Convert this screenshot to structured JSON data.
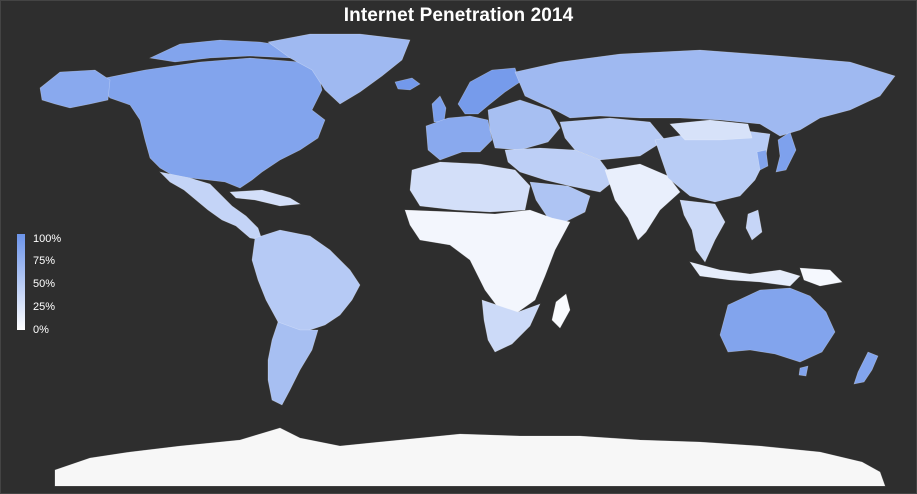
{
  "title": "Internet Penetration 2014",
  "legend": {
    "labels": [
      "100%",
      "75%",
      "50%",
      "25%",
      "0%"
    ],
    "color_high": "#6c94ea",
    "color_low": "#ffffff"
  },
  "colors": {
    "background": "#2e2e2e",
    "antarctica": "#f7f7f7"
  },
  "regions": [
    {
      "name": "North America",
      "value": 0.85
    },
    {
      "name": "Alaska",
      "value": 0.8
    },
    {
      "name": "Greenland",
      "value": 0.65
    },
    {
      "name": "Central America",
      "value": 0.4
    },
    {
      "name": "Caribbean",
      "value": 0.3
    },
    {
      "name": "South America",
      "value": 0.5
    },
    {
      "name": "Southern Cone",
      "value": 0.6
    },
    {
      "name": "Iceland",
      "value": 0.95
    },
    {
      "name": "United Kingdom",
      "value": 0.9
    },
    {
      "name": "Scandinavia",
      "value": 0.93
    },
    {
      "name": "Western Europe",
      "value": 0.8
    },
    {
      "name": "Eastern Europe",
      "value": 0.6
    },
    {
      "name": "Russia",
      "value": 0.65
    },
    {
      "name": "Kazakhstan",
      "value": 0.5
    },
    {
      "name": "Middle East",
      "value": 0.45
    },
    {
      "name": "Arabian Peninsula",
      "value": 0.55
    },
    {
      "name": "South Asia",
      "value": 0.15
    },
    {
      "name": "China",
      "value": 0.48
    },
    {
      "name": "Mongolia",
      "value": 0.27
    },
    {
      "name": "Korea",
      "value": 0.85
    },
    {
      "name": "Japan",
      "value": 0.88
    },
    {
      "name": "Southeast Asia",
      "value": 0.35
    },
    {
      "name": "Indonesia",
      "value": 0.17
    },
    {
      "name": "Philippines",
      "value": 0.39
    },
    {
      "name": "North Africa",
      "value": 0.3
    },
    {
      "name": "Sub-Saharan Africa",
      "value": 0.08
    },
    {
      "name": "Southern Africa",
      "value": 0.35
    },
    {
      "name": "Madagascar",
      "value": 0.04
    },
    {
      "name": "Australia",
      "value": 0.85
    },
    {
      "name": "Tasmania",
      "value": 0.85
    },
    {
      "name": "New Zealand",
      "value": 0.85
    },
    {
      "name": "Papua New Guinea",
      "value": 0.07
    },
    {
      "name": "Antarctica",
      "value": null
    }
  ]
}
